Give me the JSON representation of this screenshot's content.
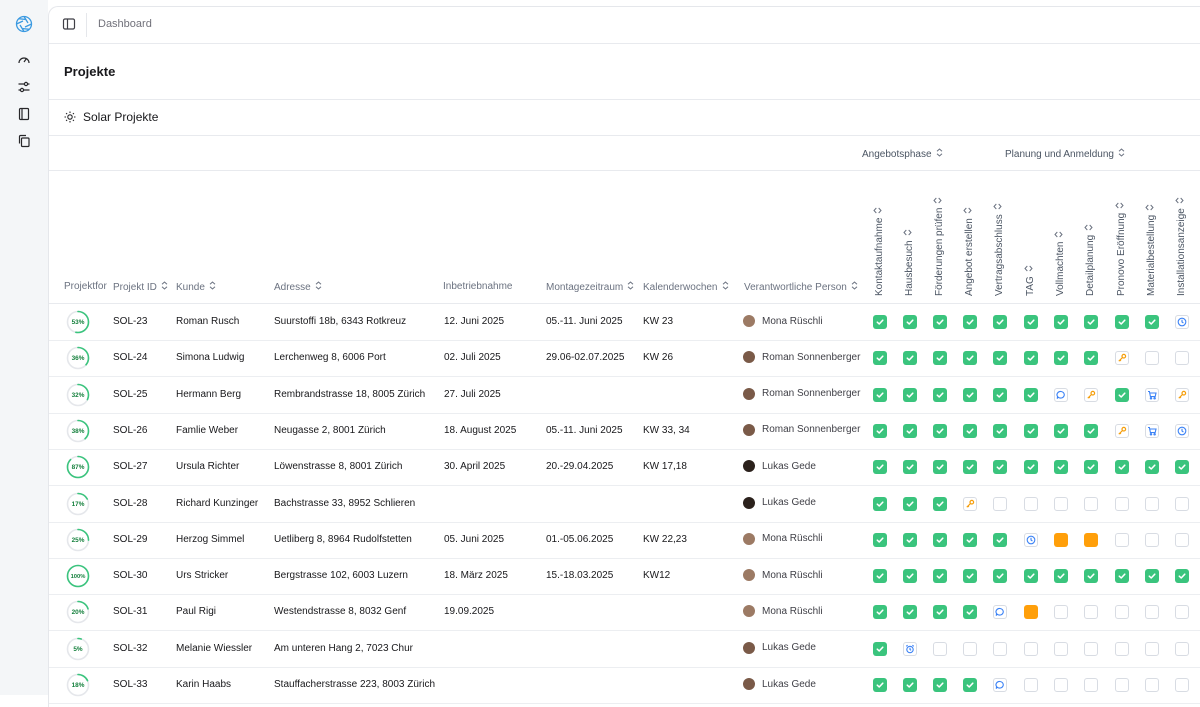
{
  "breadcrumb": "Dashboard",
  "page_title": "Projekte",
  "section_tab": "Solar Projekte",
  "columns": {
    "progress": "Projektfor",
    "id": "Projekt ID",
    "customer": "Kunde",
    "address": "Adresse",
    "commissioning": "Inbetriebnahme",
    "mounting": "Montagezeitraum",
    "weeks": "Kalenderwochen",
    "person": "Verantwortliche Person"
  },
  "phase_groups": [
    "Angebotsphase",
    "Planung und Anmeldung"
  ],
  "phases": [
    "Kontaktaufnahme",
    "Hausbesuch",
    "Förderungen prüfen",
    "Angebot erstellen",
    "Vertragsabschluss",
    "TAG",
    "Vollmachten",
    "Detailplanung",
    "Pronovo Eröffnung",
    "Materialbestellung",
    "Installationsanzeige"
  ],
  "colors": {
    "done": "#3ac47d",
    "warn": "#ff9f0a",
    "key_icon": "#f59e0b",
    "blue_icon": "#3b82f6"
  },
  "rows": [
    {
      "progress": "53%",
      "pct": 53,
      "id": "SOL-23",
      "customer": "Roman Rusch",
      "address": "Suurstoffi 18b, 6343 Rotkreuz",
      "commissioning": "12. Juni 2025",
      "mounting": "05.-11. Juni 2025",
      "weeks": "KW 23",
      "person": "Mona Rüschli",
      "avatar": "female",
      "statuses": [
        "done",
        "done",
        "done",
        "done",
        "done",
        "done",
        "done",
        "done",
        "done",
        "done",
        "clock"
      ]
    },
    {
      "progress": "36%",
      "pct": 36,
      "id": "SOL-24",
      "customer": "Simona Ludwig",
      "address": "Lerchenweg 8, 6006 Port",
      "commissioning": "02. Juli 2025",
      "mounting": "29.06-02.07.2025",
      "weeks": "KW 26",
      "person": "Roman Sonnenberger",
      "avatar": "male",
      "statuses": [
        "done",
        "done",
        "done",
        "done",
        "done",
        "done",
        "done",
        "done",
        "key",
        "empty",
        "empty"
      ]
    },
    {
      "progress": "32%",
      "pct": 32,
      "id": "SOL-25",
      "customer": "Hermann Berg",
      "address": "Rembrandstrasse 18, 8005 Zürich",
      "commissioning": "27. Juli 2025",
      "mounting": "",
      "weeks": "",
      "person": "Roman Sonnenberger",
      "avatar": "male",
      "statuses": [
        "done",
        "done",
        "done",
        "done",
        "done",
        "done",
        "chat",
        "key",
        "done",
        "cart",
        "key"
      ]
    },
    {
      "progress": "38%",
      "pct": 38,
      "id": "SOL-26",
      "customer": "Famlie Weber",
      "address": "Neugasse 2, 8001 Zürich",
      "commissioning": "18. August 2025",
      "mounting": "05.-11. Juni 2025",
      "weeks": "KW 33, 34",
      "person": "Roman Sonnenberger",
      "avatar": "male",
      "statuses": [
        "done",
        "done",
        "done",
        "done",
        "done",
        "done",
        "done",
        "done",
        "key",
        "cart",
        "clock"
      ]
    },
    {
      "progress": "87%",
      "pct": 87,
      "id": "SOL-27",
      "customer": "Ursula Richter",
      "address": "Löwenstrasse 8, 8001 Zürich",
      "commissioning": "30. April 2025",
      "mounting": "20.-29.04.2025",
      "weeks": "KW 17,18",
      "person": "Lukas Gede",
      "avatar": "dark",
      "statuses": [
        "done",
        "done",
        "done",
        "done",
        "done",
        "done",
        "done",
        "done",
        "done",
        "done",
        "done"
      ]
    },
    {
      "progress": "17%",
      "pct": 17,
      "id": "SOL-28",
      "customer": "Richard Kunzinger",
      "address": "Bachstrasse 33, 8952 Schlieren",
      "commissioning": "",
      "mounting": "",
      "weeks": "",
      "person": "Lukas Gede",
      "avatar": "dark",
      "statuses": [
        "done",
        "done",
        "done",
        "key",
        "empty",
        "empty",
        "empty",
        "empty",
        "empty",
        "empty",
        "empty"
      ]
    },
    {
      "progress": "25%",
      "pct": 25,
      "id": "SOL-29",
      "customer": "Herzog Simmel",
      "address": "Uetliberg 8,  8964 Rudolfstetten",
      "commissioning": "05. Juni 2025",
      "mounting": "01.-05.06.2025",
      "weeks": "KW 22,23",
      "person": "Mona Rüschli",
      "avatar": "female",
      "statuses": [
        "done",
        "done",
        "done",
        "done",
        "done",
        "clock",
        "warn",
        "warn",
        "empty",
        "empty",
        "empty"
      ]
    },
    {
      "progress": "100%",
      "pct": 100,
      "id": "SOL-30",
      "customer": "Urs Stricker",
      "address": "Bergstrasse 102, 6003 Luzern",
      "commissioning": "18. März 2025",
      "mounting": "15.-18.03.2025",
      "weeks": "KW12",
      "person": "Mona Rüschli",
      "avatar": "female",
      "statuses": [
        "done",
        "done",
        "done",
        "done",
        "done",
        "done",
        "done",
        "done",
        "done",
        "done",
        "done"
      ]
    },
    {
      "progress": "20%",
      "pct": 20,
      "id": "SOL-31",
      "customer": "Paul Rigi",
      "address": "Westendstrasse 8, 8032 Genf",
      "commissioning": "19.09.2025",
      "mounting": "",
      "weeks": "",
      "person": "Mona Rüschli",
      "avatar": "female",
      "statuses": [
        "done",
        "done",
        "done",
        "done",
        "chat",
        "warn",
        "empty",
        "empty",
        "empty",
        "empty",
        "empty"
      ]
    },
    {
      "progress": "5%",
      "pct": 5,
      "id": "SOL-32",
      "customer": "Melanie Wiessler",
      "address": "Am unteren Hang 2, 7023 Chur",
      "commissioning": "",
      "mounting": "",
      "weeks": "",
      "person": "Lukas Gede",
      "avatar": "male",
      "statuses": [
        "done",
        "alarm",
        "empty",
        "empty",
        "empty",
        "empty",
        "empty",
        "empty",
        "empty",
        "empty",
        "empty"
      ]
    },
    {
      "progress": "18%",
      "pct": 18,
      "id": "SOL-33",
      "customer": "Karin Haabs",
      "address": "Stauffacherstrasse 223, 8003 Zürich",
      "commissioning": "",
      "mounting": "",
      "weeks": "",
      "person": "Lukas Gede",
      "avatar": "male",
      "statuses": [
        "done",
        "done",
        "done",
        "done",
        "chat",
        "empty",
        "empty",
        "empty",
        "empty",
        "empty",
        "empty"
      ]
    }
  ]
}
